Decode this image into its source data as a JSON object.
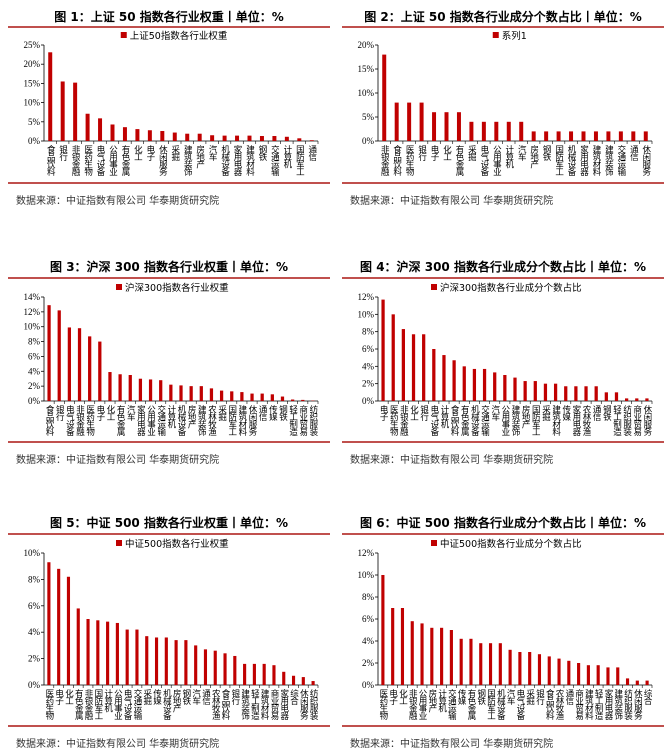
{
  "colors": {
    "bar": "#c00000",
    "rule": "#c0504d"
  },
  "chart_data": [
    {
      "type": "bar",
      "title": "图 1：上证 50 指数各行业权重丨单位：%",
      "legend": "上证50指数各行业权重",
      "source": "数据来源：中证指数有限公司 华泰期货研究院",
      "ylim": [
        0,
        25
      ],
      "yticks": [
        0,
        5,
        10,
        15,
        20,
        25
      ],
      "categories": [
        "食品饮料",
        "银行",
        "非银金融",
        "医药生物",
        "电气设备",
        "公用事业",
        "有色金属",
        "化工",
        "电子",
        "休闲服务",
        "采掘",
        "建筑装饰",
        "房地产",
        "汽车",
        "机械设备",
        "家用电器",
        "建筑材料",
        "钢铁",
        "交通运输",
        "计算机",
        "国防军工",
        "通信"
      ],
      "values": [
        23.1,
        15.5,
        15.2,
        7.1,
        5.9,
        4.3,
        3.6,
        3.1,
        2.8,
        2.6,
        2.2,
        1.9,
        1.9,
        1.5,
        1.4,
        1.4,
        1.4,
        1.3,
        1.3,
        1.1,
        0.7,
        0.2
      ]
    },
    {
      "type": "bar",
      "title": "图 2：上证 50 指数各行业成分个数占比丨单位：%",
      "legend": "系列1",
      "source": "数据来源：中证指数有限公司 华泰期货研究院",
      "ylim": [
        0,
        20
      ],
      "yticks": [
        0,
        5,
        10,
        15,
        20
      ],
      "categories": [
        "非银金融",
        "食品饮料",
        "医药生物",
        "银行",
        "电子",
        "化工",
        "有色金属",
        "采掘",
        "电气设备",
        "公用事业",
        "计算机",
        "汽车",
        "房地产",
        "钢铁",
        "国防军工",
        "机械设备",
        "家用电器",
        "建筑材料",
        "建筑装饰",
        "交通运输",
        "通信",
        "休闲服务"
      ],
      "values": [
        18,
        8,
        8,
        8,
        6,
        6,
        6,
        4,
        4,
        4,
        4,
        4,
        2,
        2,
        2,
        2,
        2,
        2,
        2,
        2,
        2,
        2
      ]
    },
    {
      "type": "bar",
      "title": "图 3：沪深 300 指数各行业权重丨单位：%",
      "legend": "沪深300指数各行业权重",
      "source": "数据来源：中证指数有限公司 华泰期货研究院",
      "ylim": [
        0,
        14
      ],
      "yticks": [
        0,
        2,
        4,
        6,
        8,
        10,
        12,
        14
      ],
      "categories": [
        "食品饮料",
        "银行",
        "电气设备",
        "非银金融",
        "医药生物",
        "电子",
        "化工",
        "有色金属",
        "汽车",
        "家用电器",
        "公用事业",
        "交通运输",
        "计算机",
        "机械设备",
        "房地产",
        "建筑装饰",
        "农林牧渔",
        "采掘",
        "国防军工",
        "建筑材料",
        "休闲服务",
        "通信",
        "传媒",
        "钢铁",
        "轻工制造",
        "商业贸易",
        "纺织服装"
      ],
      "values": [
        12.9,
        12.2,
        9.9,
        9.8,
        8.7,
        8.0,
        3.9,
        3.6,
        3.5,
        3.0,
        2.9,
        2.8,
        2.2,
        2.1,
        2.0,
        2.0,
        1.7,
        1.4,
        1.3,
        1.2,
        1.0,
        1.0,
        0.9,
        0.6,
        0.2,
        0.15,
        0.05
      ]
    },
    {
      "type": "bar",
      "title": "图 4：沪深 300 指数各行业成分个数占比丨单位：%",
      "legend": "沪深300指数各行业成分个数占比",
      "source": "数据来源：中证指数有限公司 华泰期货研究院",
      "ylim": [
        0,
        12
      ],
      "yticks": [
        0,
        2,
        4,
        6,
        8,
        10,
        12
      ],
      "categories": [
        "电子",
        "医药生物",
        "非银金融",
        "化工",
        "银行",
        "电气设备",
        "计算机",
        "食品饮料",
        "有色金属",
        "机械设备",
        "交通运输",
        "汽车",
        "公用事业",
        "建筑装饰",
        "房地产",
        "国防军工",
        "采掘",
        "建筑材料",
        "传媒",
        "家用电器",
        "农林牧渔",
        "通信",
        "钢铁",
        "轻工制造",
        "纺织服装",
        "商业贸易",
        "休闲服务"
      ],
      "values": [
        11.7,
        10.0,
        8.3,
        7.7,
        7.7,
        6.0,
        5.3,
        4.7,
        4.0,
        3.7,
        3.7,
        3.3,
        3.0,
        2.7,
        2.3,
        2.3,
        2.0,
        2.0,
        1.7,
        1.7,
        1.7,
        1.7,
        1.0,
        1.0,
        0.3,
        0.3,
        0.3
      ]
    },
    {
      "type": "bar",
      "title": "图 5：中证 500 指数各行业权重丨单位：%",
      "legend": "中证500指数各行业权重",
      "source": "数据来源：中证指数有限公司 华泰期货研究院",
      "ylim": [
        0,
        10
      ],
      "yticks": [
        0,
        2,
        4,
        6,
        8,
        10
      ],
      "categories": [
        "医药生物",
        "电子",
        "化工",
        "有色金属",
        "非银金融",
        "国防军工",
        "计算机",
        "公用事业",
        "电气设备",
        "交通运输",
        "采掘",
        "传媒",
        "机械设备",
        "房地产",
        "钢铁",
        "汽车",
        "通信",
        "农林牧渔",
        "食品饮料",
        "银行",
        "建筑装饰",
        "轻工制造",
        "建筑材料",
        "商业贸易",
        "家用电器",
        "综合",
        "休闲服务",
        "纺织服装"
      ],
      "values": [
        9.3,
        8.8,
        8.2,
        5.8,
        5.0,
        4.9,
        4.8,
        4.7,
        4.2,
        4.2,
        3.7,
        3.6,
        3.6,
        3.4,
        3.4,
        3.0,
        2.7,
        2.6,
        2.4,
        2.2,
        1.6,
        1.6,
        1.6,
        1.5,
        1.0,
        0.7,
        0.6,
        0.3
      ]
    },
    {
      "type": "bar",
      "title": "图 6：中证 500 指数各行业成分个数占比丨单位：%",
      "legend": "中证500指数各行业成分个数占比",
      "source": "数据来源：中证指数有限公司 华泰期货研究院",
      "ylim": [
        0,
        12
      ],
      "yticks": [
        0,
        2,
        4,
        6,
        8,
        10,
        12
      ],
      "categories": [
        "医药生物",
        "电子",
        "化工",
        "非银金融",
        "公用事业",
        "房地产",
        "计算机",
        "交通运输",
        "传媒",
        "有色金属",
        "钢铁",
        "国防军工",
        "机械设备",
        "汽车",
        "电气设备",
        "采掘",
        "银行",
        "食品饮料",
        "农林牧渔",
        "通信",
        "商业贸易",
        "建筑材料",
        "轻工制造",
        "家用电器",
        "建筑装饰",
        "纺织服装",
        "休闲服务",
        "综合"
      ],
      "values": [
        10,
        7,
        7,
        5.8,
        5.6,
        5.2,
        5.2,
        5.0,
        4.2,
        4.2,
        3.8,
        3.8,
        3.8,
        3.2,
        3.0,
        3.0,
        2.8,
        2.6,
        2.4,
        2.2,
        2.0,
        1.8,
        1.8,
        1.6,
        1.6,
        0.6,
        0.4,
        0.4
      ]
    }
  ]
}
